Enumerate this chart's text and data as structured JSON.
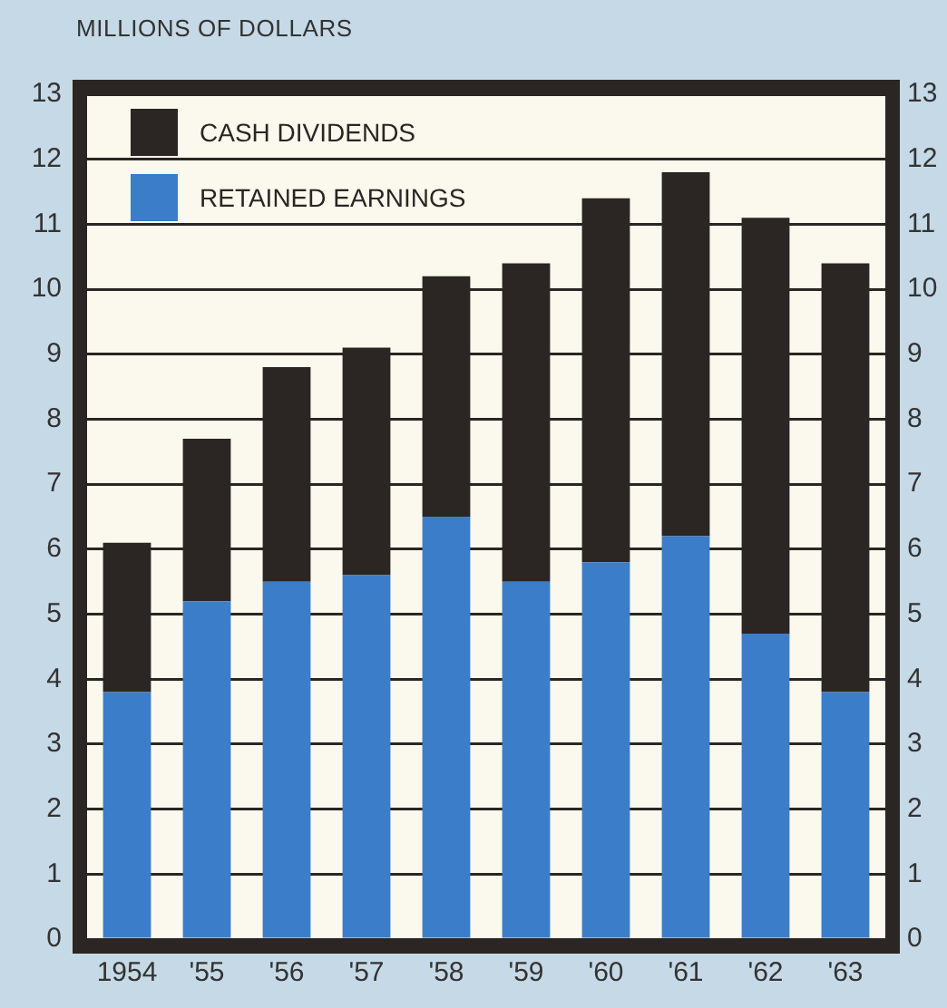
{
  "chart_data": {
    "type": "bar",
    "ylabel": "MILLIONS OF DOLLARS",
    "categories": [
      "1954",
      "'55",
      "'56",
      "'57",
      "'58",
      "'59",
      "'60",
      "'61",
      "'62",
      "'63"
    ],
    "stacked": true,
    "series": [
      {
        "name": "RETAINED EARNINGS",
        "color": "#3b7dc9",
        "values": [
          3.8,
          5.2,
          5.5,
          5.6,
          6.5,
          5.5,
          5.8,
          6.2,
          4.7,
          3.8
        ]
      },
      {
        "name": "CASH DIVIDENDS",
        "color": "#2b2523",
        "values": [
          2.3,
          2.5,
          3.3,
          3.5,
          3.7,
          4.9,
          5.6,
          5.6,
          6.4,
          6.6
        ]
      }
    ],
    "ylim": [
      0,
      13
    ],
    "yticks": [
      0,
      1,
      2,
      3,
      4,
      5,
      6,
      7,
      8,
      9,
      10,
      11,
      12,
      13
    ],
    "y2lim": [
      0,
      13
    ],
    "y2ticks": [
      0,
      1,
      2,
      3,
      4,
      5,
      6,
      7,
      8,
      9,
      10,
      11,
      12,
      13
    ],
    "grid": "y",
    "legend": "top left"
  }
}
